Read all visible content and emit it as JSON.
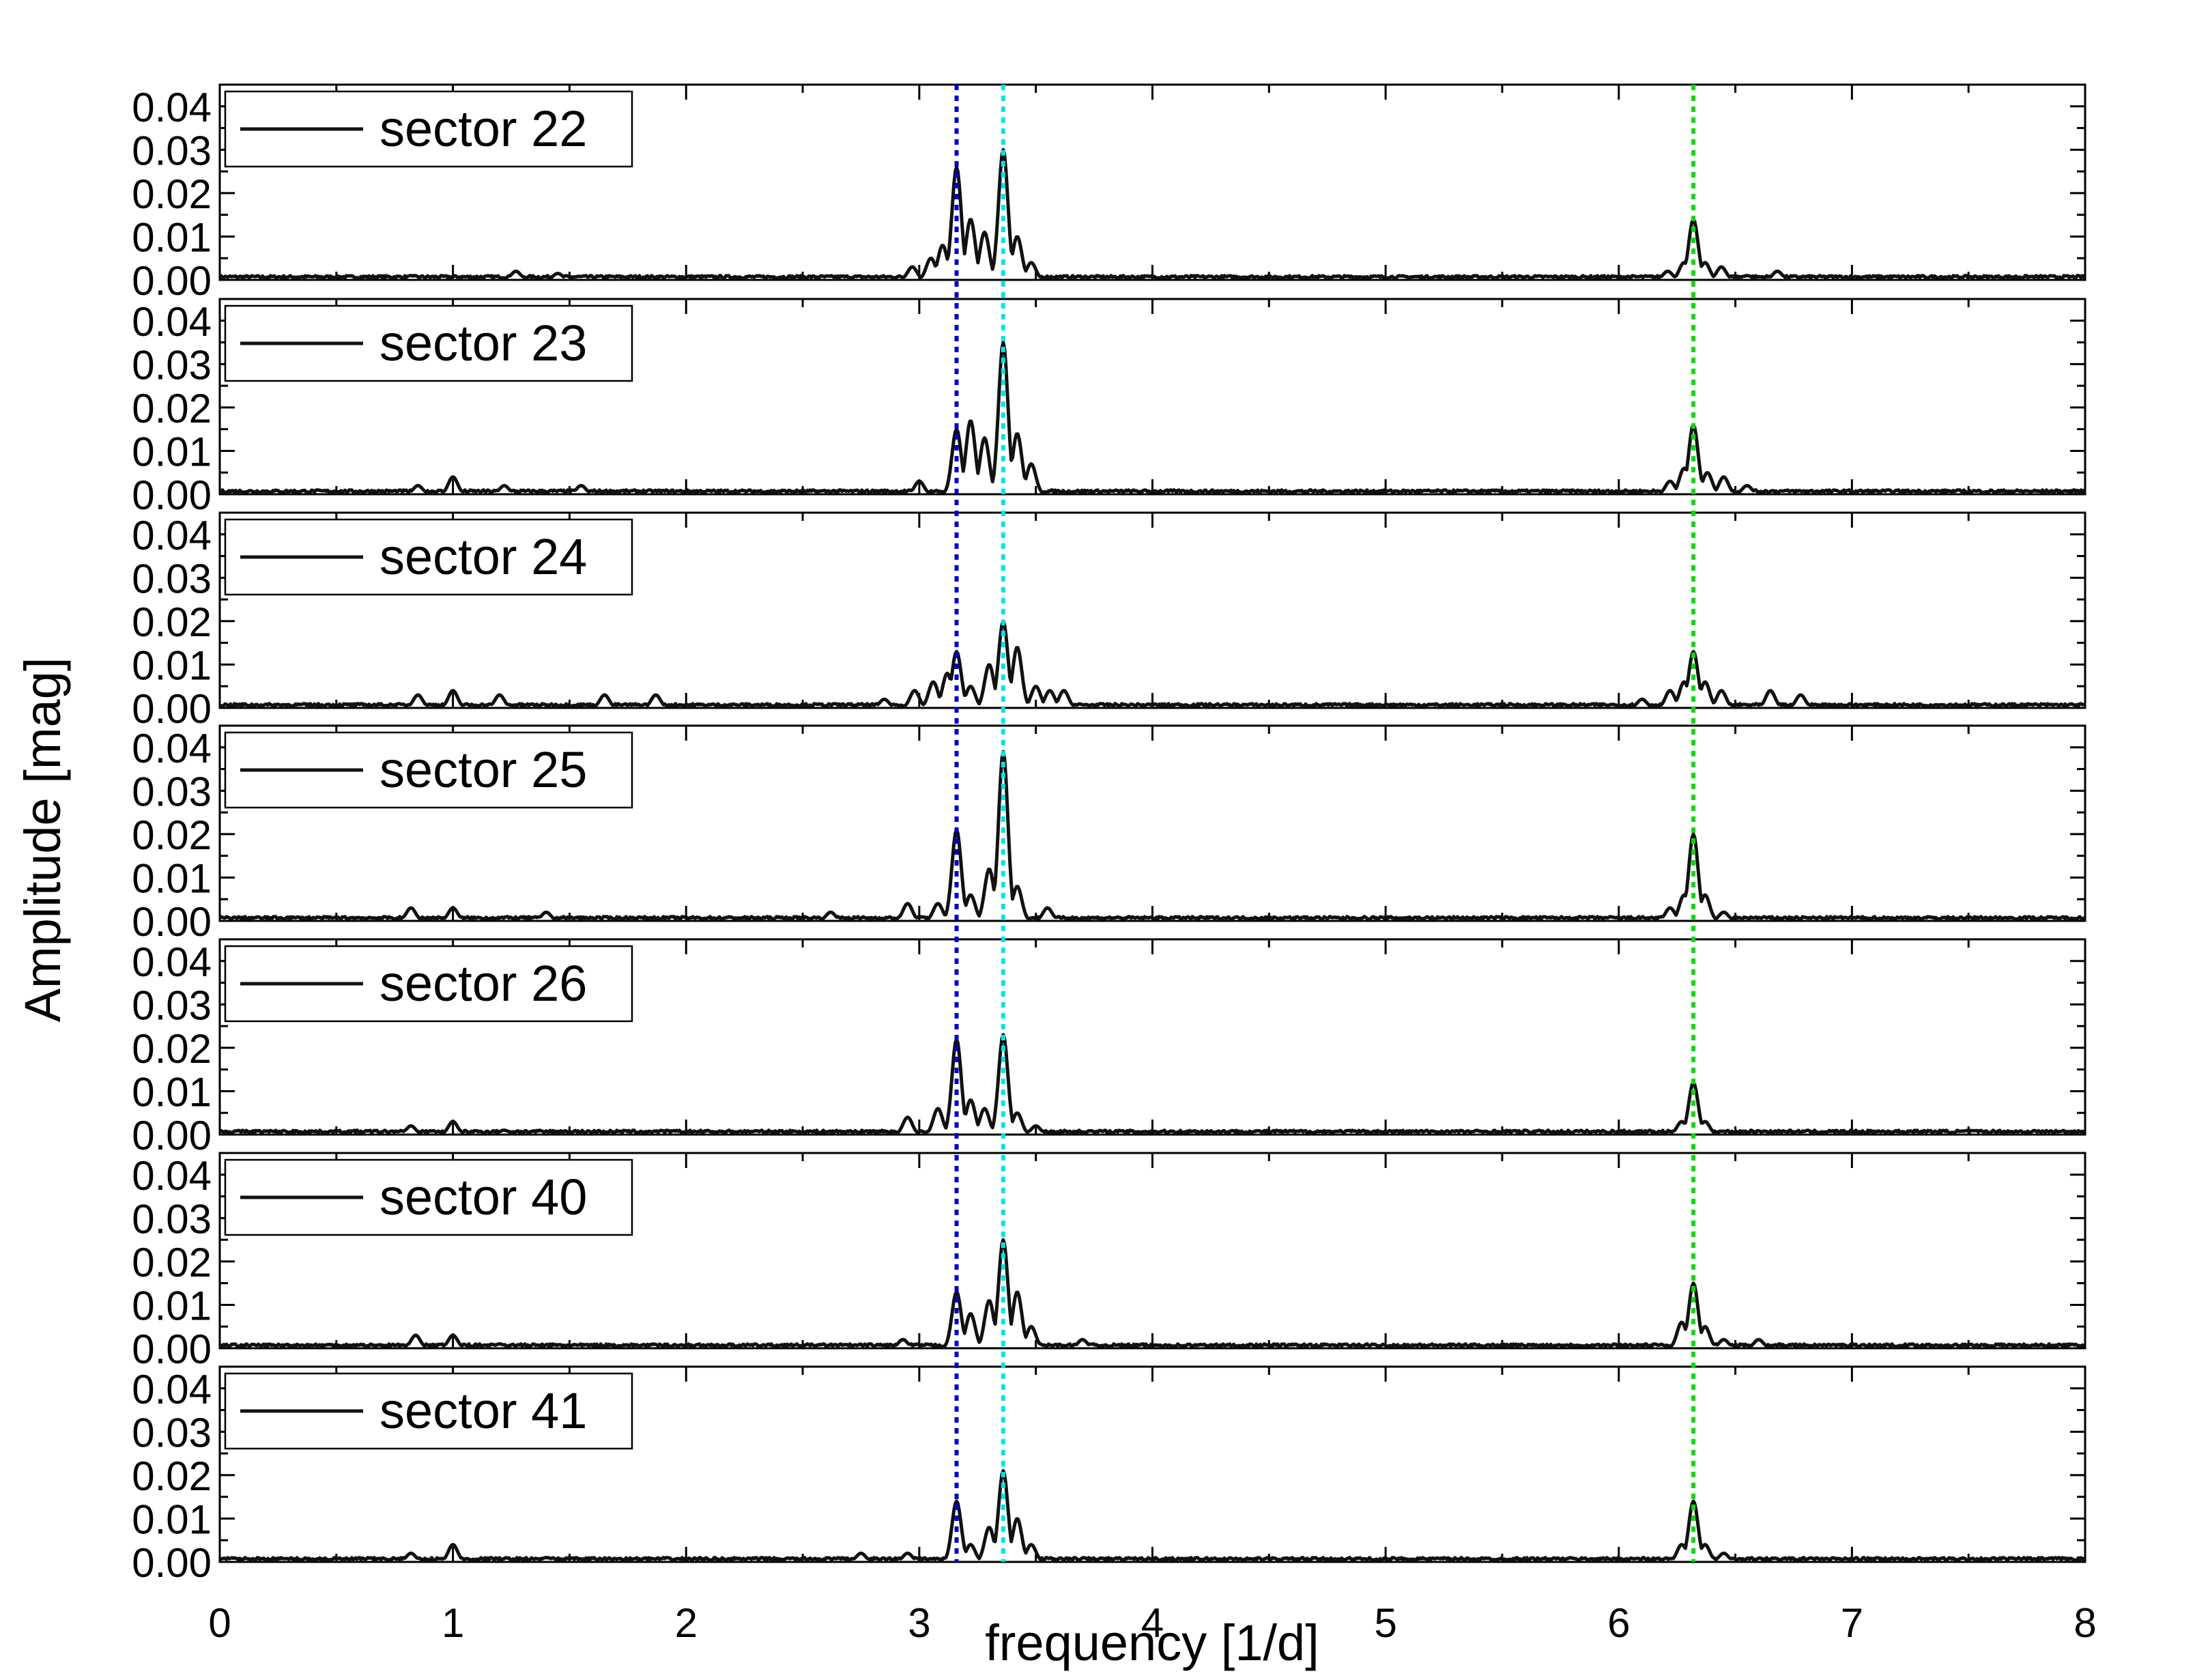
{
  "chart_data": {
    "type": "line",
    "xlabel": "frequency [1/d]",
    "ylabel": "Amplitude [mag]",
    "xlim": [
      0,
      8
    ],
    "ylim": [
      0,
      0.045
    ],
    "x_ticks": [
      "0",
      "1",
      "2",
      "3",
      "4",
      "5",
      "6",
      "7",
      "8"
    ],
    "y_ticks": [
      "0.00",
      "0.01",
      "0.02",
      "0.03",
      "0.04"
    ],
    "reference_lines": [
      {
        "x": 3.16,
        "color": "#0000cc",
        "style": "dotted"
      },
      {
        "x": 3.36,
        "color": "#00e5e5",
        "style": "dotted"
      },
      {
        "x": 6.32,
        "color": "#00e000",
        "style": "dotted"
      }
    ],
    "series_color": "#111111",
    "panels": [
      {
        "legend": "sector 22",
        "peaks": [
          [
            0.82,
            0.001
          ],
          [
            1.27,
            0.002
          ],
          [
            1.45,
            0.0015
          ],
          [
            2.97,
            0.003
          ],
          [
            3.05,
            0.005
          ],
          [
            3.1,
            0.008
          ],
          [
            3.16,
            0.026
          ],
          [
            3.22,
            0.014
          ],
          [
            3.28,
            0.011
          ],
          [
            3.36,
            0.03
          ],
          [
            3.42,
            0.01
          ],
          [
            3.48,
            0.004
          ],
          [
            6.21,
            0.002
          ],
          [
            6.28,
            0.004
          ],
          [
            6.32,
            0.014
          ],
          [
            6.37,
            0.004
          ],
          [
            6.44,
            0.003
          ],
          [
            6.55,
            0.001
          ],
          [
            6.68,
            0.002
          ]
        ]
      },
      {
        "legend": "sector 23",
        "peaks": [
          [
            0.85,
            0.002
          ],
          [
            1.0,
            0.004
          ],
          [
            1.22,
            0.002
          ],
          [
            1.55,
            0.002
          ],
          [
            3.0,
            0.003
          ],
          [
            3.16,
            0.015
          ],
          [
            3.22,
            0.017
          ],
          [
            3.28,
            0.013
          ],
          [
            3.36,
            0.035
          ],
          [
            3.42,
            0.014
          ],
          [
            3.48,
            0.007
          ],
          [
            6.22,
            0.003
          ],
          [
            6.28,
            0.006
          ],
          [
            6.32,
            0.016
          ],
          [
            6.38,
            0.005
          ],
          [
            6.45,
            0.004
          ],
          [
            6.55,
            0.002
          ]
        ]
      },
      {
        "legend": "sector 24",
        "peaks": [
          [
            0.85,
            0.003
          ],
          [
            1.0,
            0.004
          ],
          [
            1.2,
            0.003
          ],
          [
            1.65,
            0.003
          ],
          [
            1.87,
            0.003
          ],
          [
            2.85,
            0.002
          ],
          [
            2.98,
            0.004
          ],
          [
            3.06,
            0.006
          ],
          [
            3.12,
            0.008
          ],
          [
            3.16,
            0.013
          ],
          [
            3.22,
            0.005
          ],
          [
            3.3,
            0.01
          ],
          [
            3.36,
            0.02
          ],
          [
            3.42,
            0.014
          ],
          [
            3.5,
            0.005
          ],
          [
            3.56,
            0.004
          ],
          [
            3.62,
            0.004
          ],
          [
            6.1,
            0.002
          ],
          [
            6.22,
            0.004
          ],
          [
            6.28,
            0.006
          ],
          [
            6.32,
            0.013
          ],
          [
            6.37,
            0.006
          ],
          [
            6.44,
            0.004
          ],
          [
            6.65,
            0.004
          ],
          [
            6.78,
            0.003
          ]
        ]
      },
      {
        "legend": "sector 25",
        "peaks": [
          [
            0.82,
            0.003
          ],
          [
            1.0,
            0.003
          ],
          [
            1.4,
            0.002
          ],
          [
            2.62,
            0.002
          ],
          [
            2.95,
            0.004
          ],
          [
            3.08,
            0.004
          ],
          [
            3.16,
            0.021
          ],
          [
            3.22,
            0.006
          ],
          [
            3.3,
            0.012
          ],
          [
            3.36,
            0.039
          ],
          [
            3.42,
            0.008
          ],
          [
            3.55,
            0.003
          ],
          [
            6.22,
            0.003
          ],
          [
            6.28,
            0.006
          ],
          [
            6.32,
            0.02
          ],
          [
            6.37,
            0.006
          ],
          [
            6.45,
            0.002
          ]
        ]
      },
      {
        "legend": "sector 26",
        "peaks": [
          [
            0.82,
            0.002
          ],
          [
            1.0,
            0.003
          ],
          [
            1.22,
            0.001
          ],
          [
            2.95,
            0.004
          ],
          [
            3.08,
            0.006
          ],
          [
            3.16,
            0.022
          ],
          [
            3.22,
            0.008
          ],
          [
            3.28,
            0.006
          ],
          [
            3.36,
            0.023
          ],
          [
            3.42,
            0.005
          ],
          [
            3.5,
            0.002
          ],
          [
            6.27,
            0.003
          ],
          [
            6.32,
            0.012
          ],
          [
            6.37,
            0.003
          ]
        ]
      },
      {
        "legend": "sector 40",
        "peaks": [
          [
            0.84,
            0.003
          ],
          [
            1.0,
            0.003
          ],
          [
            1.2,
            0.001
          ],
          [
            2.93,
            0.002
          ],
          [
            3.16,
            0.013
          ],
          [
            3.22,
            0.008
          ],
          [
            3.3,
            0.011
          ],
          [
            3.36,
            0.025
          ],
          [
            3.42,
            0.013
          ],
          [
            3.48,
            0.005
          ],
          [
            3.7,
            0.002
          ],
          [
            6.27,
            0.006
          ],
          [
            6.32,
            0.015
          ],
          [
            6.37,
            0.005
          ],
          [
            6.45,
            0.002
          ],
          [
            6.6,
            0.002
          ]
        ]
      },
      {
        "legend": "sector 41",
        "peaks": [
          [
            0.82,
            0.002
          ],
          [
            1.0,
            0.004
          ],
          [
            1.4,
            0.001
          ],
          [
            2.75,
            0.002
          ],
          [
            2.95,
            0.002
          ],
          [
            3.16,
            0.014
          ],
          [
            3.22,
            0.004
          ],
          [
            3.3,
            0.008
          ],
          [
            3.36,
            0.021
          ],
          [
            3.42,
            0.01
          ],
          [
            3.48,
            0.004
          ],
          [
            6.27,
            0.004
          ],
          [
            6.32,
            0.014
          ],
          [
            6.37,
            0.004
          ],
          [
            6.45,
            0.002
          ]
        ]
      }
    ]
  }
}
